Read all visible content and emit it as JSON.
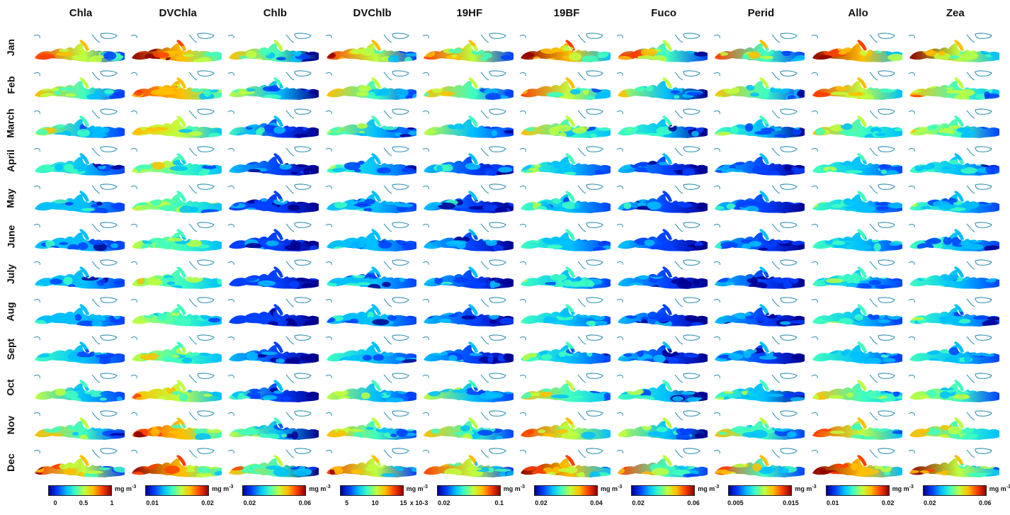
{
  "columns": [
    "Chla",
    "DVChla",
    "Chlb",
    "DVChlb",
    "19HF",
    "19BF",
    "Fuco",
    "Perid",
    "Allo",
    "Zea"
  ],
  "months": [
    "Jan",
    "Feb",
    "March",
    "April",
    "May",
    "June",
    "July",
    "Aug",
    "Sept",
    "Oct",
    "Nov",
    "Dec"
  ],
  "unit_base": "mg m",
  "unit_exp": "-3",
  "colorbars": [
    {
      "ticks": [
        "0",
        "0.5",
        "1"
      ],
      "suffix": ""
    },
    {
      "ticks": [
        "0.01",
        "0.02"
      ],
      "suffix": ""
    },
    {
      "ticks": [
        "0.02",
        "0.06"
      ],
      "suffix": ""
    },
    {
      "ticks": [
        "5",
        "10",
        "15"
      ],
      "suffix": "x 10-3"
    },
    {
      "ticks": [
        "0.02",
        "0.1"
      ],
      "suffix": ""
    },
    {
      "ticks": [
        "0.02",
        "0.04"
      ],
      "suffix": ""
    },
    {
      "ticks": [
        "0.02",
        "0.06"
      ],
      "suffix": ""
    },
    {
      "ticks": [
        "0.005",
        "0.015"
      ],
      "suffix": ""
    },
    {
      "ticks": [
        "0.01",
        "0.02"
      ],
      "suffix": ""
    },
    {
      "ticks": [
        "0.02",
        "0.06"
      ],
      "suffix": ""
    }
  ],
  "colors": {
    "jet": [
      "#00008f",
      "#0040ff",
      "#00bfff",
      "#40ffbf",
      "#bfff40",
      "#ffbf00",
      "#ff4000",
      "#8f0000"
    ],
    "coast": "#2a8fb0"
  }
}
